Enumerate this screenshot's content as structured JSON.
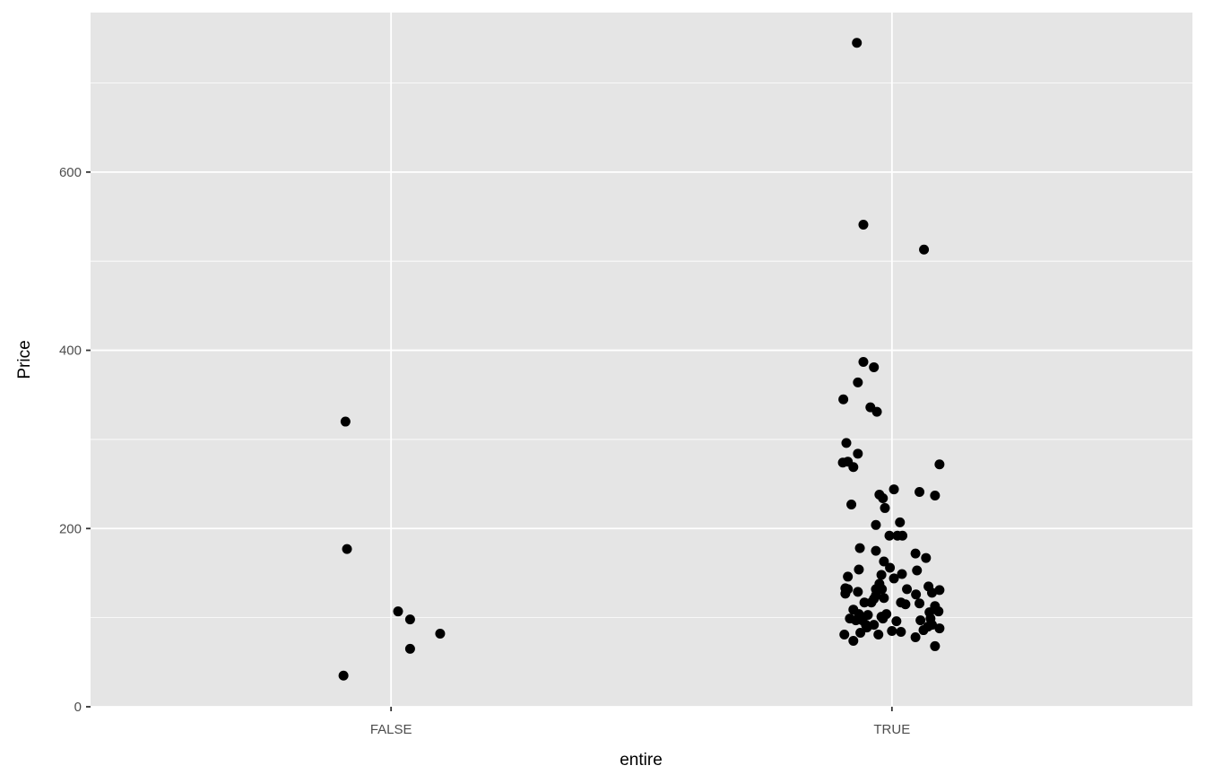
{
  "chart_data": {
    "type": "scatter",
    "title": "",
    "xlabel": "entire",
    "ylabel": "Price",
    "categories": [
      "FALSE",
      "TRUE"
    ],
    "xlim": [
      0.4,
      2.6
    ],
    "ylim": [
      0,
      779
    ],
    "yticks": [
      0,
      200,
      400,
      600
    ],
    "yminor": [
      100,
      300,
      500,
      700
    ],
    "grid": true,
    "background": "#e5e5e5",
    "point_color": "#000000",
    "points": [
      [
        0.909,
        320
      ],
      [
        0.912,
        177
      ],
      [
        1.014,
        107
      ],
      [
        1.038,
        98
      ],
      [
        1.038,
        65
      ],
      [
        1.098,
        82
      ],
      [
        0.905,
        35
      ],
      [
        1.93,
        745
      ],
      [
        1.943,
        541
      ],
      [
        2.064,
        513
      ],
      [
        1.943,
        387
      ],
      [
        1.964,
        381
      ],
      [
        1.932,
        364
      ],
      [
        1.903,
        345
      ],
      [
        1.957,
        336
      ],
      [
        1.97,
        331
      ],
      [
        1.909,
        296
      ],
      [
        1.932,
        284
      ],
      [
        1.902,
        274
      ],
      [
        1.912,
        275
      ],
      [
        1.923,
        269
      ],
      [
        2.095,
        272
      ],
      [
        2.004,
        244
      ],
      [
        2.055,
        241
      ],
      [
        2.086,
        237
      ],
      [
        1.975,
        238
      ],
      [
        1.982,
        234
      ],
      [
        1.986,
        223
      ],
      [
        1.919,
        227
      ],
      [
        1.968,
        204
      ],
      [
        2.016,
        207
      ],
      [
        1.995,
        192
      ],
      [
        2.011,
        192
      ],
      [
        2.021,
        192
      ],
      [
        1.936,
        178
      ],
      [
        1.968,
        175
      ],
      [
        2.047,
        172
      ],
      [
        2.068,
        167
      ],
      [
        1.984,
        163
      ],
      [
        1.996,
        156
      ],
      [
        1.934,
        154
      ],
      [
        1.912,
        146
      ],
      [
        1.979,
        148
      ],
      [
        2.02,
        149
      ],
      [
        2.05,
        153
      ],
      [
        2.004,
        144
      ],
      [
        1.975,
        138
      ],
      [
        1.907,
        133
      ],
      [
        1.912,
        132
      ],
      [
        1.968,
        132
      ],
      [
        1.98,
        132
      ],
      [
        2.03,
        132
      ],
      [
        2.073,
        135
      ],
      [
        2.095,
        131
      ],
      [
        2.08,
        128
      ],
      [
        1.907,
        127
      ],
      [
        1.932,
        129
      ],
      [
        2.048,
        126
      ],
      [
        1.968,
        125
      ],
      [
        1.984,
        122
      ],
      [
        1.964,
        121
      ],
      [
        1.945,
        117
      ],
      [
        1.959,
        117
      ],
      [
        2.018,
        117
      ],
      [
        2.027,
        115
      ],
      [
        2.055,
        116
      ],
      [
        1.923,
        109
      ],
      [
        2.086,
        113
      ],
      [
        2.075,
        106
      ],
      [
        2.093,
        107
      ],
      [
        1.934,
        104
      ],
      [
        1.952,
        103
      ],
      [
        1.989,
        104
      ],
      [
        1.979,
        101
      ],
      [
        1.916,
        99
      ],
      [
        2.077,
        99
      ],
      [
        1.928,
        97
      ],
      [
        1.941,
        97
      ],
      [
        2.057,
        97
      ],
      [
        2.009,
        96
      ],
      [
        1.948,
        92
      ],
      [
        1.964,
        92
      ],
      [
        2.08,
        92
      ],
      [
        1.982,
        99
      ],
      [
        1.95,
        89
      ],
      [
        2.063,
        86
      ],
      [
        2.095,
        88
      ],
      [
        2.072,
        90
      ],
      [
        1.905,
        81
      ],
      [
        1.937,
        83
      ],
      [
        1.973,
        81
      ],
      [
        2.0,
        85
      ],
      [
        2.018,
        84
      ],
      [
        2.047,
        78
      ],
      [
        1.923,
        74
      ],
      [
        2.086,
        68
      ]
    ]
  }
}
